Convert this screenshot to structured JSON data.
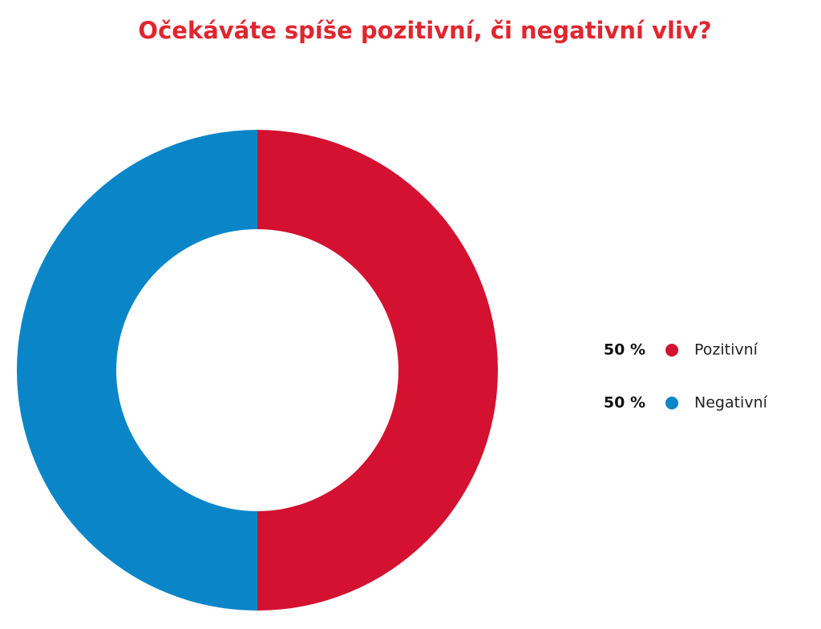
{
  "chart_data": {
    "type": "donut",
    "title": "Očekáváte spíše pozitivní, či negativní vliv?",
    "categories": [
      "Pozitivní",
      "Negativní"
    ],
    "values": [
      50,
      50
    ],
    "value_labels": [
      "50 %",
      "50 %"
    ],
    "colors": [
      "#d41131",
      "#0a86c8"
    ],
    "legend": "right"
  }
}
